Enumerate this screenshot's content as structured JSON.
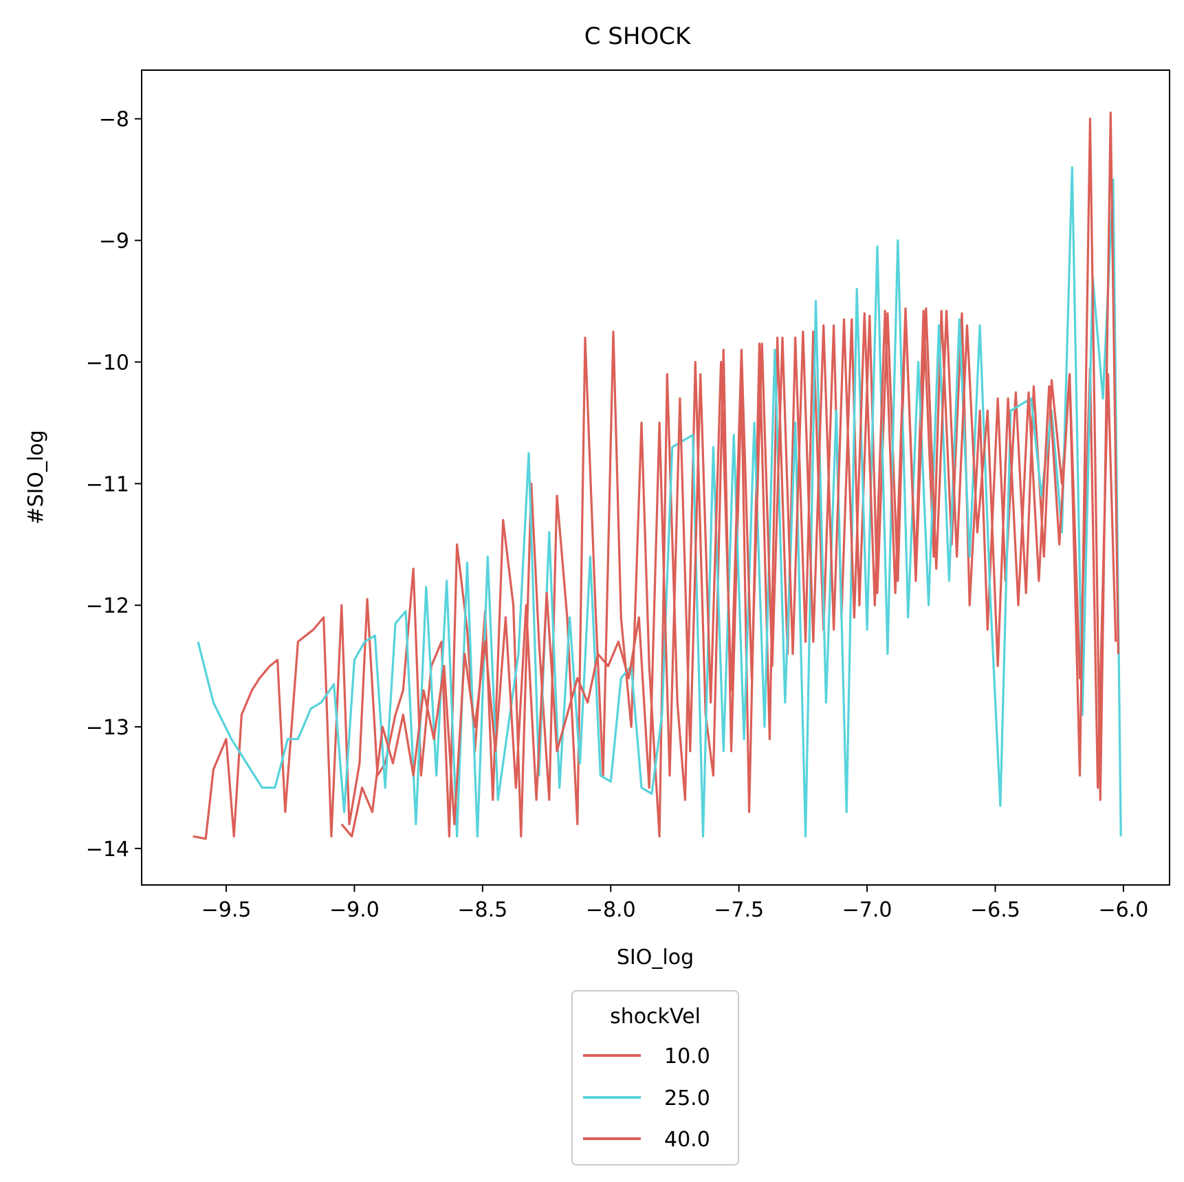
{
  "chart_data": {
    "type": "line",
    "title": "C SHOCK",
    "xlabel": "SIO_log",
    "ylabel": "#SIO_log",
    "xlim": [
      -9.83,
      -5.82
    ],
    "ylim": [
      -14.3,
      -7.6
    ],
    "xticks": [
      -9.5,
      -9.0,
      -8.5,
      -8.0,
      -7.5,
      -7.0,
      -6.5,
      -6.0
    ],
    "xtick_labels": [
      "−9.5",
      "−9.0",
      "−8.5",
      "−8.0",
      "−7.5",
      "−7.0",
      "−6.5",
      "−6.0"
    ],
    "yticks": [
      -14,
      -13,
      -12,
      -11,
      -10,
      -9,
      -8
    ],
    "ytick_labels": [
      "−14",
      "−13",
      "−12",
      "−11",
      "−10",
      "−9",
      "−8"
    ],
    "grid": false,
    "legend": {
      "title": "shockVel",
      "placement": "bottom-center-outside",
      "entries": [
        "10.0",
        "25.0",
        "40.0"
      ]
    },
    "series": [
      {
        "name": "10.0",
        "color": "#db5f57",
        "x": [
          -9.63,
          -9.58,
          -9.55,
          -9.5,
          -9.47,
          -9.44,
          -9.4,
          -9.37,
          -9.33,
          -9.3,
          -9.27,
          -9.22,
          -9.19,
          -9.16,
          -9.12,
          -9.09,
          -9.05,
          -9.02,
          -8.98,
          -8.95,
          -8.91,
          -8.88,
          -8.84,
          -8.81,
          -8.77,
          -8.74,
          -8.7,
          -8.66,
          -8.63,
          -8.6,
          -8.56,
          -8.53,
          -8.49,
          -8.46,
          -8.42,
          -8.38,
          -8.35,
          -8.31,
          -8.28,
          -8.24,
          -8.21,
          -8.17,
          -8.13,
          -8.1,
          -8.06,
          -8.03,
          -7.99,
          -7.96,
          -7.92,
          -7.88,
          -7.85,
          -7.81,
          -7.78,
          -7.74,
          -7.71,
          -7.67,
          -7.63,
          -7.6,
          -7.56,
          -7.53,
          -7.49,
          -7.46,
          -7.42,
          -7.38,
          -7.35,
          -7.31,
          -7.28,
          -7.24,
          -7.21,
          -7.17,
          -7.13,
          -7.1,
          -7.06,
          -7.03,
          -6.99,
          -6.96,
          -6.92,
          -6.88,
          -6.85,
          -6.81,
          -6.78,
          -6.74,
          -6.71,
          -6.67,
          -6.63,
          -6.6,
          -6.56,
          -6.53,
          -6.49,
          -6.46,
          -6.42,
          -6.38,
          -6.35,
          -6.31,
          -6.28,
          -6.24,
          -6.21,
          -6.17,
          -6.13,
          -6.1,
          -6.06,
          -6.03
        ],
        "y": [
          -13.9,
          -13.92,
          -13.35,
          -13.1,
          -13.9,
          -12.9,
          -12.7,
          -12.6,
          -12.5,
          -12.45,
          -13.7,
          -12.3,
          -12.25,
          -12.2,
          -12.1,
          -13.9,
          -12.0,
          -13.8,
          -13.3,
          -11.95,
          -13.4,
          -13.3,
          -12.9,
          -12.7,
          -11.7,
          -13.4,
          -12.5,
          -12.3,
          -13.9,
          -11.5,
          -12.2,
          -13.2,
          -12.05,
          -13.6,
          -11.3,
          -12.0,
          -13.9,
          -11.0,
          -12.3,
          -13.6,
          -11.1,
          -12.1,
          -13.8,
          -9.8,
          -12.0,
          -13.4,
          -9.75,
          -12.1,
          -13.0,
          -10.5,
          -12.5,
          -13.9,
          -10.1,
          -12.8,
          -13.6,
          -10.0,
          -12.9,
          -13.4,
          -9.9,
          -13.2,
          -10.2,
          -13.7,
          -9.85,
          -13.1,
          -9.8,
          -12.4,
          -9.8,
          -12.3,
          -9.75,
          -12.2,
          -9.7,
          -12.1,
          -9.65,
          -12.0,
          -9.62,
          -11.9,
          -9.6,
          -11.8,
          -9.6,
          -11.7,
          -9.58,
          -11.6,
          -9.58,
          -11.5,
          -9.6,
          -12.0,
          -10.4,
          -12.2,
          -10.3,
          -11.8,
          -10.25,
          -11.9,
          -10.2,
          -11.6,
          -10.15,
          -11.0,
          -10.1,
          -12.6,
          -10.05,
          -13.5,
          -10.1,
          -12.3
        ]
      },
      {
        "name": "25.0",
        "color": "#57d3db",
        "x": [
          -9.61,
          -9.55,
          -9.48,
          -9.42,
          -9.36,
          -9.31,
          -9.26,
          -9.22,
          -9.17,
          -9.13,
          -9.08,
          -9.04,
          -9.0,
          -8.96,
          -8.92,
          -8.88,
          -8.84,
          -8.8,
          -8.76,
          -8.72,
          -8.68,
          -8.64,
          -8.6,
          -8.56,
          -8.52,
          -8.48,
          -8.44,
          -8.4,
          -8.36,
          -8.32,
          -8.28,
          -8.24,
          -8.2,
          -8.16,
          -8.12,
          -8.08,
          -8.04,
          -8.0,
          -7.96,
          -7.92,
          -7.88,
          -7.84,
          -7.8,
          -7.76,
          -7.72,
          -7.68,
          -7.64,
          -7.6,
          -7.56,
          -7.52,
          -7.48,
          -7.44,
          -7.4,
          -7.36,
          -7.32,
          -7.28,
          -7.24,
          -7.2,
          -7.16,
          -7.12,
          -7.08,
          -7.04,
          -7.0,
          -6.96,
          -6.92,
          -6.88,
          -6.84,
          -6.8,
          -6.76,
          -6.72,
          -6.68,
          -6.64,
          -6.6,
          -6.56,
          -6.52,
          -6.48,
          -6.44,
          -6.4,
          -6.36,
          -6.32,
          -6.28,
          -6.24,
          -6.2,
          -6.16,
          -6.12,
          -6.08,
          -6.04,
          -6.01
        ],
        "y": [
          -12.3,
          -12.8,
          -13.1,
          -13.3,
          -13.5,
          -13.5,
          -13.1,
          -13.1,
          -12.85,
          -12.8,
          -12.65,
          -13.7,
          -12.45,
          -12.3,
          -12.25,
          -13.5,
          -12.15,
          -12.05,
          -13.8,
          -11.85,
          -13.4,
          -11.8,
          -13.9,
          -11.65,
          -13.9,
          -11.6,
          -13.6,
          -13.0,
          -12.4,
          -10.75,
          -13.4,
          -11.4,
          -13.5,
          -12.1,
          -13.3,
          -11.6,
          -13.4,
          -13.45,
          -12.6,
          -12.5,
          -13.5,
          -13.55,
          -12.9,
          -10.7,
          -10.65,
          -10.6,
          -13.9,
          -10.7,
          -13.2,
          -10.6,
          -13.1,
          -10.5,
          -13.0,
          -9.9,
          -12.8,
          -10.5,
          -13.9,
          -9.5,
          -12.8,
          -10.4,
          -13.7,
          -9.4,
          -12.2,
          -9.05,
          -12.4,
          -9.0,
          -12.1,
          -10.0,
          -12.0,
          -9.7,
          -11.8,
          -9.65,
          -11.6,
          -9.7,
          -11.9,
          -13.65,
          -10.4,
          -10.35,
          -10.3,
          -11.1,
          -10.4,
          -11.4,
          -8.4,
          -12.9,
          -9.3,
          -10.3,
          -8.5,
          -13.9
        ]
      },
      {
        "name": "40.0",
        "color": "#db5f57",
        "x": [
          -9.05,
          -9.01,
          -8.97,
          -8.93,
          -8.89,
          -8.85,
          -8.81,
          -8.77,
          -8.73,
          -8.69,
          -8.65,
          -8.61,
          -8.57,
          -8.53,
          -8.49,
          -8.45,
          -8.41,
          -8.37,
          -8.33,
          -8.29,
          -8.25,
          -8.21,
          -8.17,
          -8.13,
          -8.09,
          -8.05,
          -8.01,
          -7.97,
          -7.93,
          -7.89,
          -7.85,
          -7.81,
          -7.77,
          -7.73,
          -7.69,
          -7.65,
          -7.61,
          -7.57,
          -7.53,
          -7.49,
          -7.45,
          -7.41,
          -7.37,
          -7.33,
          -7.29,
          -7.25,
          -7.21,
          -7.17,
          -7.13,
          -7.09,
          -7.05,
          -7.01,
          -6.97,
          -6.93,
          -6.89,
          -6.85,
          -6.81,
          -6.77,
          -6.73,
          -6.69,
          -6.65,
          -6.61,
          -6.57,
          -6.53,
          -6.49,
          -6.45,
          -6.41,
          -6.37,
          -6.33,
          -6.29,
          -6.25,
          -6.21,
          -6.17,
          -6.13,
          -6.09,
          -6.05,
          -6.02
        ],
        "y": [
          -13.8,
          -13.9,
          -13.5,
          -13.7,
          -13.0,
          -13.3,
          -12.9,
          -13.4,
          -12.7,
          -13.1,
          -12.5,
          -13.8,
          -12.4,
          -13.0,
          -12.3,
          -13.2,
          -12.1,
          -13.5,
          -12.0,
          -13.6,
          -11.9,
          -13.2,
          -12.9,
          -12.6,
          -12.8,
          -12.4,
          -12.5,
          -12.3,
          -12.6,
          -12.1,
          -13.5,
          -10.5,
          -13.4,
          -10.3,
          -13.2,
          -10.1,
          -12.8,
          -10.0,
          -12.7,
          -9.9,
          -12.6,
          -9.85,
          -12.5,
          -9.8,
          -12.4,
          -9.75,
          -12.3,
          -9.7,
          -12.2,
          -9.65,
          -12.1,
          -9.6,
          -12.0,
          -9.58,
          -11.9,
          -9.56,
          -11.8,
          -9.56,
          -11.7,
          -9.58,
          -11.6,
          -9.7,
          -11.4,
          -10.4,
          -12.5,
          -10.3,
          -12.0,
          -10.25,
          -11.8,
          -10.2,
          -11.5,
          -10.1,
          -13.4,
          -8.0,
          -13.6,
          -7.95,
          -12.4
        ]
      }
    ]
  }
}
